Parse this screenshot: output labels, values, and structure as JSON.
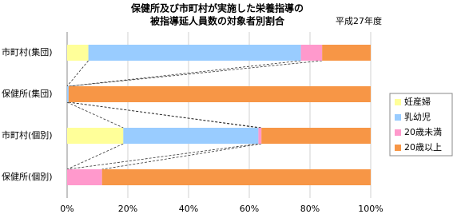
{
  "chart_data": {
    "type": "stacked-bar-horizontal",
    "title": [
      "保健所及び市町村が実施した栄養指導の",
      "被指導延人員数の対象者別割合"
    ],
    "subtitle": "平成27年度",
    "categories": [
      "市町村(集団)",
      "保健所(集団)",
      "市町村(個別)",
      "保健所(個別)"
    ],
    "series": [
      {
        "name": "妊産婦",
        "color": "#ffff99",
        "values": [
          7,
          0,
          18.5,
          0
        ]
      },
      {
        "name": "乳幼児",
        "color": "#99ccff",
        "values": [
          70,
          0.5,
          44.5,
          0
        ]
      },
      {
        "name": "20歳未満",
        "color": "#ff99cc",
        "values": [
          7,
          0,
          1,
          11.5
        ]
      },
      {
        "name": "20歳以上",
        "color": "#f79646",
        "values": [
          16,
          99.5,
          36,
          88.5
        ]
      }
    ],
    "xlim": [
      0,
      100
    ],
    "xticks": [
      {
        "value": 0,
        "label": "0%"
      },
      {
        "value": 20,
        "label": "20%"
      },
      {
        "value": 40,
        "label": "40%"
      },
      {
        "value": 60,
        "label": "60%"
      },
      {
        "value": 80,
        "label": "80%"
      },
      {
        "value": 100,
        "label": "100%"
      }
    ],
    "grid": true,
    "legend": "right"
  }
}
